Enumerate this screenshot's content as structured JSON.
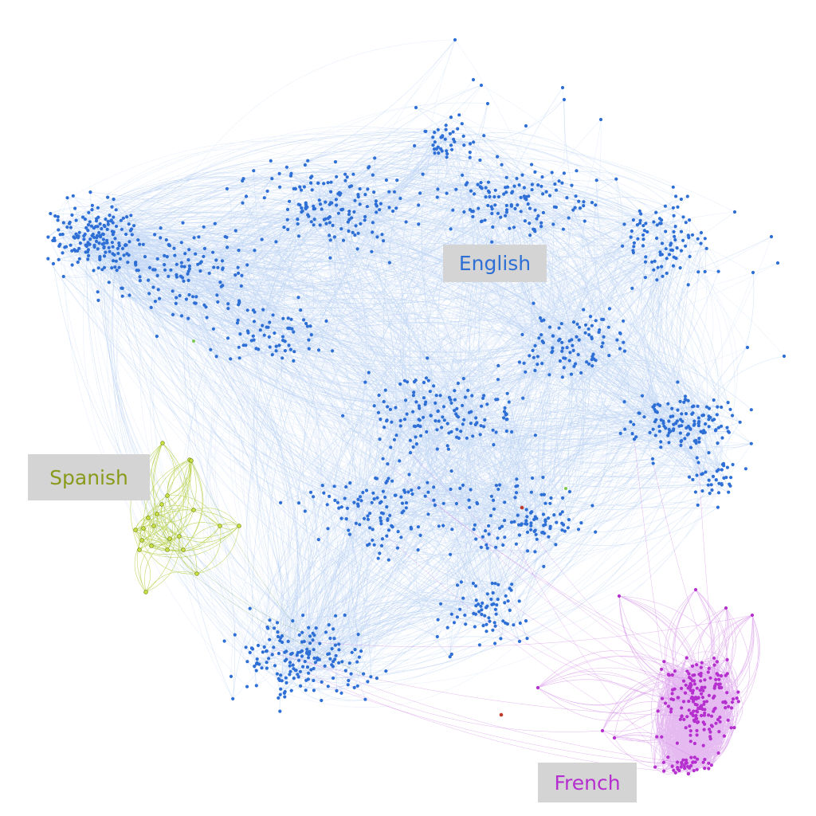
{
  "clusters": [
    {
      "key": "english",
      "label": "English",
      "color": "#2e6fd6",
      "edge_color": "#3d7fe0"
    },
    {
      "key": "spanish",
      "label": "Spanish",
      "color": "#8a9a1b",
      "edge_color": "#a8c61e"
    },
    {
      "key": "french",
      "label": "French",
      "color": "#b52fcf",
      "edge_color": "#b43ad6"
    }
  ],
  "outlier_color": "#c0392b"
}
